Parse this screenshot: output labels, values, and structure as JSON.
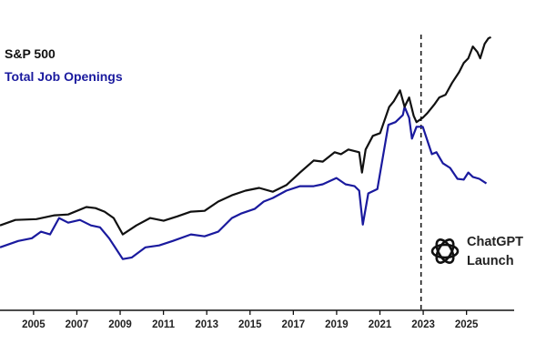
{
  "chart_data": {
    "type": "line",
    "title": "",
    "xlabel": "",
    "ylabel": "",
    "xlim": [
      2003.45,
      2027.2
    ],
    "ylim": [
      0,
      100
    ],
    "y_axis_shown": false,
    "grid": false,
    "legend_placement": "top-left",
    "x_ticks": [
      "2005",
      "2007",
      "2009",
      "2011",
      "2013",
      "2015",
      "2017",
      "2019",
      "2021",
      "2023",
      "2025"
    ],
    "annotation": {
      "x": 2022.9,
      "style": "dashed vertical line",
      "label_line1": "ChatGPT",
      "label_line2": "Launch",
      "icon": "openai-logo-icon"
    },
    "series": [
      {
        "name": "S&P 500",
        "color": "#111111",
        "x": [
          2003.45,
          2004.16,
          2005.13,
          2005.97,
          2006.6,
          2007.44,
          2007.86,
          2008.28,
          2008.7,
          2009.12,
          2009.75,
          2010.38,
          2011.01,
          2011.64,
          2012.27,
          2012.9,
          2013.53,
          2014.16,
          2014.79,
          2015.42,
          2016.05,
          2016.68,
          2017.31,
          2017.94,
          2018.36,
          2018.91,
          2019.2,
          2019.54,
          2020.04,
          2020.17,
          2020.34,
          2020.67,
          2021.01,
          2021.43,
          2021.64,
          2021.93,
          2022.14,
          2022.35,
          2022.56,
          2022.69,
          2022.98,
          2023.19,
          2023.53,
          2023.74,
          2024.03,
          2024.33,
          2024.66,
          2024.87,
          2025.08,
          2025.29,
          2025.5,
          2025.63,
          2025.84,
          2026.01,
          2026.13
        ],
        "y": [
          31.0,
          33.0,
          33.3,
          34.7,
          35.0,
          37.7,
          37.3,
          36.0,
          33.7,
          27.7,
          31.0,
          33.7,
          32.7,
          34.3,
          36.0,
          36.3,
          39.7,
          42.0,
          43.7,
          44.7,
          43.3,
          45.7,
          50.3,
          54.7,
          54.3,
          57.7,
          57.0,
          58.7,
          57.7,
          50.3,
          58.7,
          63.7,
          64.7,
          74.3,
          76.3,
          80.3,
          74.3,
          77.7,
          71.0,
          68.7,
          70.3,
          72.0,
          75.3,
          77.7,
          78.7,
          83.0,
          87.0,
          90.3,
          92.0,
          96.3,
          94.3,
          92.0,
          97.3,
          99.3,
          99.7
        ]
      },
      {
        "name": "Total Job Openings",
        "color": "#1a1a9e",
        "x": [
          2003.45,
          2004.29,
          2004.92,
          2005.34,
          2005.76,
          2006.18,
          2006.6,
          2007.14,
          2007.65,
          2008.07,
          2008.49,
          2009.12,
          2009.54,
          2010.17,
          2010.8,
          2011.43,
          2012.27,
          2012.9,
          2013.53,
          2014.16,
          2014.58,
          2015.21,
          2015.63,
          2016.05,
          2016.68,
          2017.31,
          2017.94,
          2018.36,
          2018.99,
          2019.41,
          2019.83,
          2020.04,
          2020.21,
          2020.46,
          2020.88,
          2021.39,
          2021.72,
          2022.06,
          2022.14,
          2022.35,
          2022.48,
          2022.69,
          2022.98,
          2023.19,
          2023.4,
          2023.61,
          2023.91,
          2024.24,
          2024.58,
          2024.87,
          2025.08,
          2025.29,
          2025.59,
          2025.92
        ],
        "y": [
          23.0,
          25.3,
          26.3,
          28.7,
          27.7,
          33.7,
          32.0,
          33.0,
          31.0,
          30.3,
          26.3,
          18.7,
          19.3,
          23.0,
          23.7,
          25.3,
          27.7,
          27.0,
          28.7,
          33.7,
          35.3,
          37.0,
          39.7,
          41.0,
          43.7,
          45.3,
          45.3,
          46.0,
          48.3,
          46.0,
          45.3,
          43.7,
          31.3,
          42.7,
          44.3,
          67.7,
          68.7,
          71.3,
          74.3,
          70.3,
          62.7,
          67.0,
          67.0,
          62.0,
          57.0,
          57.7,
          53.7,
          52.0,
          48.0,
          47.7,
          50.3,
          48.7,
          48.0,
          46.3
        ]
      }
    ]
  }
}
